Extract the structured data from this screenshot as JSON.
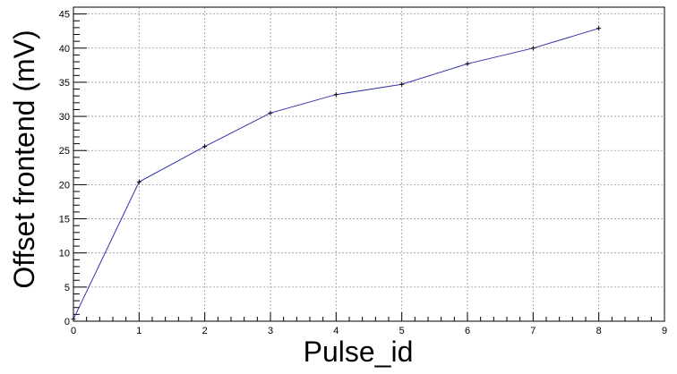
{
  "chart_data": {
    "type": "line",
    "title": "",
    "xlabel": "Pulse_id",
    "ylabel": "Offset frontend (mV)",
    "xlim": [
      0,
      9
    ],
    "ylim": [
      0,
      46
    ],
    "x_ticks": [
      "0",
      "1",
      "2",
      "3",
      "4",
      "5",
      "6",
      "7",
      "8",
      "9"
    ],
    "y_ticks": [
      "0",
      "5",
      "10",
      "15",
      "20",
      "25",
      "30",
      "35",
      "40",
      "45"
    ],
    "grid": true,
    "series": [
      {
        "x": [
          0,
          1,
          2,
          3,
          4,
          5,
          6,
          7,
          8
        ],
        "y": [
          0.3,
          20.4,
          25.6,
          30.5,
          33.2,
          34.7,
          37.7,
          40.0,
          42.9
        ],
        "color": "#3333aa",
        "marker_color": "#000000"
      }
    ]
  }
}
